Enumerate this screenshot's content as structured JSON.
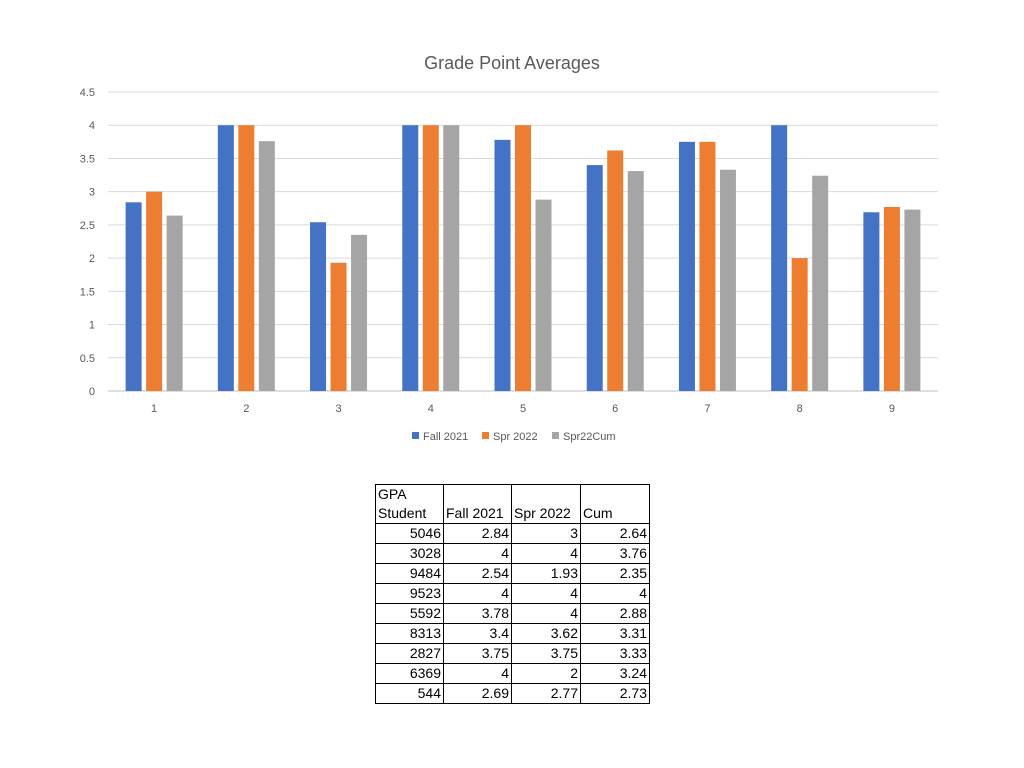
{
  "chart_data": {
    "type": "bar",
    "title": "Grade Point Averages",
    "categories": [
      "1",
      "2",
      "3",
      "4",
      "5",
      "6",
      "7",
      "8",
      "9"
    ],
    "series": [
      {
        "name": "Fall 2021",
        "color": "#4472C4",
        "values": [
          2.84,
          4,
          2.54,
          4,
          3.78,
          3.4,
          3.75,
          4,
          2.69
        ]
      },
      {
        "name": "Spr 2022",
        "color": "#ED7D31",
        "values": [
          3,
          4,
          1.93,
          4,
          4,
          3.62,
          3.75,
          2,
          2.77
        ]
      },
      {
        "name": "Spr22Cum",
        "color": "#A5A5A5",
        "values": [
          2.64,
          3.76,
          2.35,
          4,
          2.88,
          3.31,
          3.33,
          3.24,
          2.73
        ]
      }
    ],
    "ylim": [
      0,
      4.5
    ],
    "yticks": [
      "0",
      "0.5",
      "1",
      "1.5",
      "2",
      "2.5",
      "3",
      "3.5",
      "4",
      "4.5"
    ],
    "grid": true,
    "legend_position": "bottom"
  },
  "table": {
    "title_cell": "GPA",
    "headers": [
      "Student",
      "Fall 2021",
      "Spr 2022",
      "Cum"
    ],
    "rows": [
      [
        "5046",
        "2.84",
        "3",
        "2.64"
      ],
      [
        "3028",
        "4",
        "4",
        "3.76"
      ],
      [
        "9484",
        "2.54",
        "1.93",
        "2.35"
      ],
      [
        "9523",
        "4",
        "4",
        "4"
      ],
      [
        "5592",
        "3.78",
        "4",
        "2.88"
      ],
      [
        "8313",
        "3.4",
        "3.62",
        "3.31"
      ],
      [
        "2827",
        "3.75",
        "3.75",
        "3.33"
      ],
      [
        "6369",
        "4",
        "2",
        "3.24"
      ],
      [
        "544",
        "2.69",
        "2.77",
        "2.73"
      ]
    ]
  }
}
